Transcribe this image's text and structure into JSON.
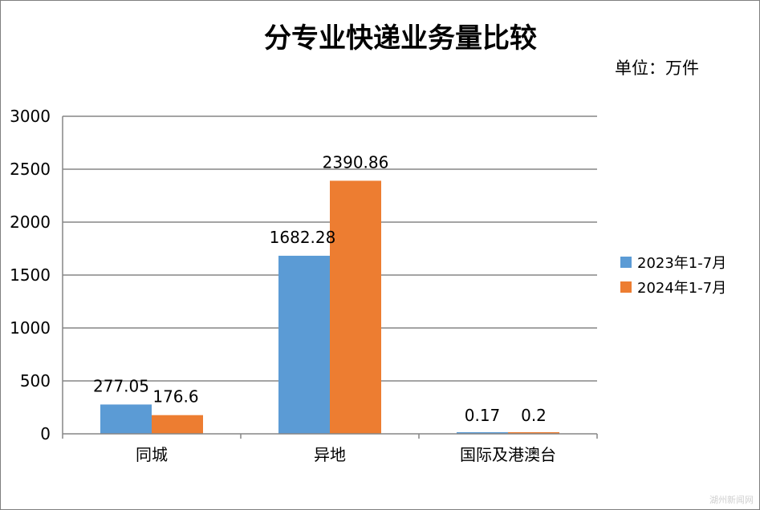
{
  "chart_data": {
    "type": "bar",
    "title": "分专业快递业务量比较",
    "unit_label": "单位：万件",
    "categories": [
      "同城",
      "异地",
      "国际及港澳台"
    ],
    "series": [
      {
        "name": "2023年1-7月",
        "values": [
          277.05,
          1682.28,
          0.17
        ],
        "labels": [
          "277.05",
          "1682.28",
          "0.17"
        ],
        "color": "#5b9bd5"
      },
      {
        "name": "2024年1-7月",
        "values": [
          176.6,
          2390.86,
          0.2
        ],
        "labels": [
          "176.6",
          "2390.86",
          "0.2"
        ],
        "color": "#ed7d31"
      }
    ],
    "ylim": [
      0,
      3000
    ],
    "yticks": [
      0,
      500,
      1000,
      1500,
      2000,
      2500,
      3000
    ],
    "grid": true,
    "legend_position": "right"
  },
  "watermark": "湖州新闻网"
}
